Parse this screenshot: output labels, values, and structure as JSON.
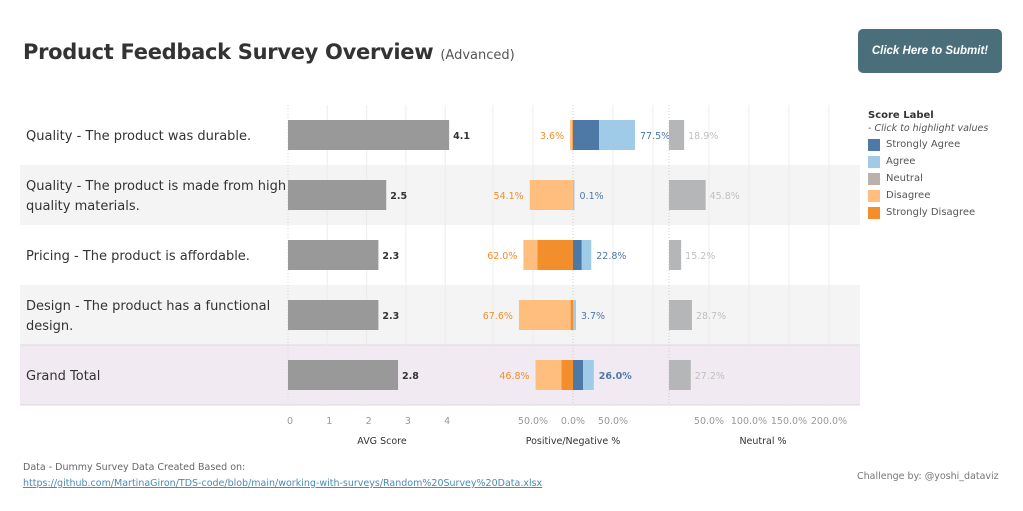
{
  "header": {
    "title": "Product Feedback Survey Overview",
    "subtitle": "(Advanced)",
    "submit_label": "Click Here to Submit!"
  },
  "legend": {
    "title": "Score Label",
    "hint": "- Click to highlight values",
    "items": [
      {
        "label": "Strongly Agree",
        "color": "#4e79a7"
      },
      {
        "label": "Agree",
        "color": "#a0cbe8"
      },
      {
        "label": "Neutral",
        "color": "#bab0ac"
      },
      {
        "label": "Disagree",
        "color": "#ffbe7d"
      },
      {
        "label": "Strongly Disagree",
        "color": "#f28e2b"
      }
    ]
  },
  "footer": {
    "note": "Data - Dummy Survey Data Created Based on:",
    "link": "https://github.com/MartinaGiron/TDS-code/blob/main/working-with-surveys/Random%20Survey%20Data.xlsx",
    "credit": "Challenge by: @yoshi_dataviz"
  },
  "colors": {
    "avg_bar": "#999999",
    "neutral_bar": "#b4b6b7",
    "negative_label": "#f28e2b",
    "positive_label": "#4e79a7",
    "neutral_label": "#c0c0c0",
    "band_alt": "#f4f4f4",
    "band_total": "#f1eaf2"
  },
  "chart_data": {
    "type": "bar",
    "title": "Product Feedback Survey Overview",
    "categories": [
      "Quality - The product was durable.",
      "Quality - The product is made from high quality materials.",
      "Pricing - The product is affordable.",
      "Design - The product has a functional design.",
      "Grand Total"
    ],
    "category_lines": [
      [
        "Quality - The product was durable."
      ],
      [
        "Quality - The product is made from high",
        "quality materials."
      ],
      [
        "Pricing - The product is affordable."
      ],
      [
        "Design - The product has a functional",
        "design."
      ],
      [
        "Grand Total"
      ]
    ],
    "panels": [
      {
        "name": "AVG Score",
        "xlabel": "AVG Score",
        "xlim": [
          0,
          4.3
        ],
        "ticks": [
          0,
          1,
          2,
          3,
          4
        ],
        "tick_labels": [
          "0",
          "1",
          "2",
          "3",
          "4"
        ],
        "values": [
          4.1,
          2.5,
          2.3,
          2.3,
          2.8
        ],
        "value_labels": [
          "4.1",
          "2.5",
          "2.3",
          "2.3",
          "2.8"
        ]
      },
      {
        "name": "Positive/Negative %",
        "xlabel": "Positive/Negative %",
        "type": "diverging-stacked-bar",
        "xlim": [
          -100,
          100
        ],
        "ticks": [
          -50,
          0,
          50
        ],
        "tick_labels": [
          "50.0%",
          "0.0%",
          "50.0%"
        ],
        "series": [
          {
            "name": "Strongly Disagree",
            "side": "negative",
            "values": [
              1.0,
              0.0,
              44.5,
              3.0,
              14.5
            ]
          },
          {
            "name": "Disagree",
            "side": "negative",
            "values": [
              2.6,
              54.1,
              17.5,
              64.6,
              32.3
            ]
          },
          {
            "name": "Strongly Agree",
            "side": "positive",
            "values": [
              32.5,
              0.0,
              11.0,
              0.0,
              12.5
            ]
          },
          {
            "name": "Agree",
            "side": "positive",
            "values": [
              45.0,
              0.1,
              11.8,
              3.7,
              13.5
            ]
          }
        ],
        "negative_totals": [
          "3.6%",
          "54.1%",
          "62.0%",
          "67.6%",
          "46.8%"
        ],
        "positive_totals": [
          "77.5%",
          "0.1%",
          "22.8%",
          "3.7%",
          "26.0%"
        ]
      },
      {
        "name": "Neutral %",
        "xlabel": "Neutral %",
        "xlim": [
          0,
          225
        ],
        "ticks": [
          50,
          100,
          150,
          200
        ],
        "tick_labels": [
          "50.0%",
          "100.0%",
          "150.0%",
          "200.0%"
        ],
        "values": [
          18.9,
          45.8,
          15.2,
          28.7,
          27.2
        ],
        "value_labels": [
          "18.9%",
          "45.8%",
          "15.2%",
          "28.7%",
          "27.2%"
        ]
      }
    ],
    "grid": true,
    "legend_position": "right"
  }
}
